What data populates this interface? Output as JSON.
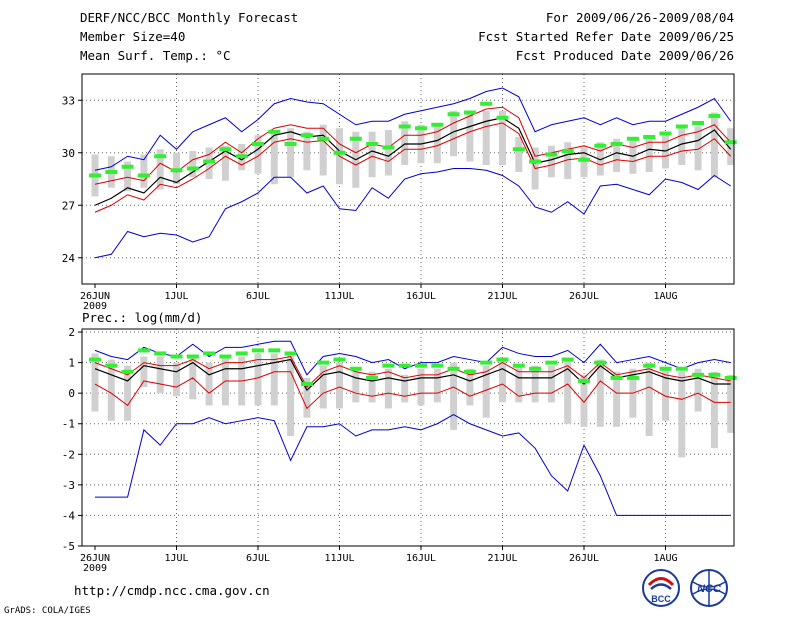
{
  "header": {
    "title": "DERF/NCC/BCC Monthly Forecast",
    "member_size": "Member Size=40",
    "variable": "Mean Surf. Temp.: °C",
    "period": "For 2009/06/26-2009/08/04",
    "refer_date": "Fcst Started Refer Date 2009/06/25",
    "produced_date": "Fcst Produced Date 2009/06/26"
  },
  "footer": {
    "url": "http://cmdp.ncc.cma.gov.cn",
    "grads": "GrADS: COLA/IGES",
    "logo_bcc": "BCC",
    "logo_ncc": "NCC"
  },
  "colors": {
    "envelope": "#0000cc",
    "spread": "#dd0000",
    "mean": "#000000",
    "observed": "#33ee33",
    "box": "#d0d0d0",
    "grid": "#666666"
  },
  "chart_data": [
    {
      "type": "line",
      "title": "Mean Surf. Temp.: °C",
      "x_start_label": "26JUN",
      "x_year_label": "2009",
      "xticks": [
        "26JUN",
        "1JUL",
        "6JUL",
        "11JUL",
        "16JUL",
        "21JUL",
        "26JUL",
        "1AUG"
      ],
      "days": 40,
      "ylim": [
        22.5,
        34.5
      ],
      "yticks": [
        24,
        27,
        30,
        33
      ],
      "series": [
        {
          "name": "max",
          "color": "blue",
          "values": [
            29.0,
            29.2,
            29.8,
            29.6,
            31.0,
            30.2,
            31.2,
            31.6,
            32.0,
            31.2,
            31.9,
            32.8,
            33.1,
            32.9,
            32.8,
            32.2,
            31.6,
            31.8,
            31.8,
            32.2,
            32.4,
            32.6,
            32.8,
            33.1,
            33.5,
            33.7,
            33.2,
            31.2,
            31.6,
            31.8,
            32.0,
            31.6,
            32.0,
            31.6,
            31.8,
            31.8,
            32.2,
            32.6,
            33.1,
            31.8
          ]
        },
        {
          "name": "upper",
          "color": "red",
          "values": [
            28.2,
            28.4,
            28.6,
            28.4,
            29.4,
            28.9,
            29.6,
            29.9,
            30.6,
            30.0,
            30.8,
            31.4,
            31.6,
            31.4,
            31.4,
            30.5,
            30.0,
            30.5,
            30.3,
            31.0,
            31.0,
            31.2,
            31.7,
            32.1,
            32.5,
            32.6,
            32.0,
            29.8,
            30.0,
            30.2,
            30.4,
            30.1,
            30.5,
            30.3,
            30.6,
            30.6,
            31.0,
            31.2,
            31.6,
            30.6
          ]
        },
        {
          "name": "mean",
          "color": "black",
          "values": [
            27.0,
            27.4,
            28.0,
            27.7,
            28.6,
            28.3,
            28.9,
            29.5,
            30.1,
            29.6,
            30.2,
            31.0,
            31.2,
            30.9,
            31.0,
            30.1,
            29.6,
            30.1,
            29.8,
            30.5,
            30.5,
            30.7,
            31.2,
            31.5,
            31.8,
            32.0,
            31.4,
            29.4,
            29.6,
            29.9,
            30.0,
            29.6,
            30.0,
            29.8,
            30.2,
            30.1,
            30.5,
            30.7,
            31.3,
            30.2
          ]
        },
        {
          "name": "lower",
          "color": "red",
          "values": [
            26.6,
            27.0,
            27.6,
            27.3,
            28.2,
            28.0,
            28.5,
            29.1,
            29.8,
            29.3,
            29.8,
            30.6,
            30.8,
            30.6,
            30.7,
            29.8,
            29.3,
            29.8,
            29.5,
            30.2,
            30.2,
            30.4,
            30.8,
            31.2,
            31.5,
            31.7,
            31.1,
            29.1,
            29.3,
            29.6,
            29.7,
            29.3,
            29.6,
            29.5,
            29.8,
            29.8,
            30.1,
            30.2,
            30.8,
            29.8
          ]
        },
        {
          "name": "min",
          "color": "blue",
          "values": [
            24.0,
            24.2,
            25.5,
            25.2,
            25.4,
            25.3,
            24.9,
            25.2,
            26.8,
            27.2,
            27.7,
            28.6,
            28.6,
            27.7,
            28.1,
            26.8,
            26.7,
            28.0,
            27.4,
            28.5,
            28.8,
            28.9,
            29.1,
            29.1,
            29.0,
            28.7,
            28.1,
            26.9,
            26.6,
            27.2,
            26.5,
            28.1,
            28.2,
            27.9,
            27.6,
            28.5,
            28.3,
            27.9,
            28.7,
            28.1
          ]
        },
        {
          "name": "observed",
          "color": "green",
          "values": [
            28.7,
            28.9,
            29.2,
            28.7,
            29.8,
            29.0,
            29.1,
            29.5,
            30.2,
            29.8,
            30.5,
            31.2,
            30.5,
            31.0,
            30.8,
            30.0,
            30.8,
            30.5,
            30.3,
            31.5,
            31.4,
            31.6,
            32.2,
            32.3,
            32.8,
            32.0,
            30.2,
            29.5,
            29.9,
            30.1,
            29.6,
            30.4,
            30.5,
            30.8,
            30.9,
            31.1,
            31.5,
            31.7,
            32.1,
            30.6
          ]
        }
      ],
      "boxes": {
        "low": [
          27.5,
          28.0,
          27.8,
          28.0,
          27.9,
          28.2,
          28.6,
          28.5,
          28.4,
          29.0,
          28.8,
          28.2,
          28.6,
          29.0,
          28.7,
          28.2,
          28.0,
          28.6,
          28.7,
          29.3,
          29.4,
          29.4,
          29.8,
          29.5,
          29.3,
          29.3,
          28.9,
          27.9,
          28.6,
          28.5,
          28.6,
          28.7,
          28.9,
          28.8,
          28.9,
          29.1,
          29.3,
          29.0,
          28.6,
          29.3
        ],
        "high": [
          29.9,
          29.8,
          29.5,
          29.9,
          30.2,
          30.0,
          30.1,
          30.3,
          30.4,
          30.5,
          31.0,
          31.2,
          31.4,
          31.2,
          31.6,
          31.4,
          31.2,
          31.2,
          31.3,
          31.8,
          31.6,
          31.7,
          32.4,
          32.4,
          32.4,
          32.4,
          30.9,
          30.3,
          30.4,
          30.6,
          30.3,
          30.6,
          30.8,
          30.9,
          31.0,
          31.2,
          31.4,
          31.5,
          32.3,
          31.4
        ]
      }
    },
    {
      "type": "line",
      "title": "Prec.: log(mm/d)",
      "x_start_label": "26JUN",
      "x_year_label": "2009",
      "xticks": [
        "26JUN",
        "1JUL",
        "6JUL",
        "11JUL",
        "16JUL",
        "21JUL",
        "26JUL",
        "1AUG"
      ],
      "days": 40,
      "ylim": [
        -5,
        2.1
      ],
      "yticks": [
        -5,
        -4,
        -3,
        -2,
        -1,
        0,
        1,
        2
      ],
      "series": [
        {
          "name": "max",
          "color": "blue",
          "values": [
            1.4,
            1.2,
            1.1,
            1.5,
            1.3,
            1.2,
            1.6,
            1.2,
            1.5,
            1.5,
            1.6,
            1.7,
            1.7,
            0.6,
            1.2,
            1.3,
            1.2,
            1.0,
            1.1,
            0.8,
            1.0,
            1.0,
            1.2,
            1.1,
            1.0,
            1.5,
            1.3,
            1.2,
            1.2,
            1.4,
            1.0,
            1.6,
            1.0,
            1.1,
            1.2,
            1.0,
            0.8,
            1.0,
            1.1,
            1.0
          ]
        },
        {
          "name": "upper",
          "color": "red",
          "values": [
            1.0,
            0.8,
            0.6,
            1.0,
            0.9,
            0.9,
            1.1,
            0.8,
            1.0,
            1.0,
            1.1,
            1.1,
            1.2,
            0.2,
            0.7,
            0.9,
            0.7,
            0.6,
            0.7,
            0.5,
            0.6,
            0.6,
            0.8,
            0.6,
            0.7,
            1.0,
            0.7,
            0.7,
            0.7,
            0.9,
            0.5,
            1.0,
            0.6,
            0.7,
            0.8,
            0.6,
            0.5,
            0.6,
            0.5,
            0.4
          ]
        },
        {
          "name": "mean",
          "color": "black",
          "values": [
            0.8,
            0.6,
            0.4,
            0.9,
            0.8,
            0.7,
            1.0,
            0.6,
            0.8,
            0.8,
            0.9,
            1.0,
            1.1,
            0.1,
            0.6,
            0.7,
            0.5,
            0.4,
            0.5,
            0.4,
            0.5,
            0.5,
            0.6,
            0.4,
            0.6,
            0.8,
            0.5,
            0.5,
            0.5,
            0.8,
            0.3,
            0.9,
            0.5,
            0.6,
            0.7,
            0.5,
            0.4,
            0.5,
            0.3,
            0.3
          ]
        },
        {
          "name": "lower",
          "color": "red",
          "values": [
            0.3,
            0.0,
            -0.4,
            0.4,
            0.3,
            0.2,
            0.5,
            0.0,
            0.4,
            0.4,
            0.5,
            0.7,
            0.7,
            -0.5,
            0.0,
            0.2,
            0.0,
            -0.1,
            0.0,
            -0.1,
            0.0,
            0.0,
            0.2,
            -0.1,
            0.1,
            0.3,
            -0.1,
            0.0,
            0.0,
            0.3,
            -0.3,
            0.4,
            0.0,
            0.0,
            0.2,
            -0.1,
            -0.2,
            0.0,
            -0.3,
            -0.3
          ]
        },
        {
          "name": "min",
          "color": "blue",
          "values": [
            -3.4,
            -3.4,
            -3.4,
            -1.2,
            -1.7,
            -1.0,
            -1.0,
            -0.8,
            -1.0,
            -0.9,
            -0.8,
            -0.9,
            -2.2,
            -1.1,
            -1.1,
            -1.0,
            -1.4,
            -1.2,
            -1.2,
            -1.1,
            -1.2,
            -1.0,
            -0.7,
            -1.0,
            -1.2,
            -1.4,
            -1.3,
            -1.8,
            -2.7,
            -3.2,
            -1.7,
            -2.7,
            -4.0,
            -4.0,
            -4.0,
            -4.0,
            -4.0,
            -4.0,
            -4.0,
            -4.0
          ]
        },
        {
          "name": "observed",
          "color": "green",
          "values": [
            1.1,
            0.9,
            0.7,
            1.4,
            1.3,
            1.2,
            1.2,
            1.3,
            1.2,
            1.3,
            1.4,
            1.4,
            1.3,
            0.3,
            1.0,
            1.1,
            0.8,
            0.5,
            0.9,
            0.9,
            0.9,
            0.9,
            0.8,
            0.7,
            1.0,
            1.1,
            0.9,
            0.8,
            1.0,
            1.1,
            0.4,
            1.0,
            0.5,
            0.5,
            0.9,
            0.8,
            0.8,
            0.6,
            0.6,
            0.5
          ]
        }
      ],
      "boxes": {
        "low": [
          -0.6,
          -0.9,
          -0.9,
          0.2,
          0.0,
          -0.1,
          -0.2,
          -0.4,
          -0.4,
          -0.4,
          -0.4,
          -0.4,
          -1.4,
          -0.8,
          -0.5,
          -0.5,
          -0.3,
          -0.3,
          -0.5,
          -0.3,
          -0.4,
          -0.3,
          -1.2,
          -0.4,
          -0.8,
          -0.3,
          -0.3,
          -0.3,
          -0.3,
          -1.0,
          -1.1,
          -1.1,
          -1.1,
          -0.8,
          -1.4,
          -0.9,
          -2.1,
          -0.6,
          -1.8,
          -1.3
        ],
        "high": [
          1.3,
          1.1,
          0.9,
          1.2,
          1.2,
          1.0,
          1.2,
          1.0,
          1.2,
          1.2,
          1.3,
          1.3,
          1.3,
          0.5,
          0.9,
          1.0,
          0.8,
          0.7,
          0.8,
          0.6,
          0.8,
          0.8,
          1.0,
          0.8,
          0.9,
          1.1,
          0.9,
          0.9,
          0.9,
          1.1,
          0.6,
          1.1,
          0.7,
          0.8,
          1.0,
          0.8,
          0.7,
          0.8,
          0.7,
          0.6
        ]
      }
    }
  ]
}
